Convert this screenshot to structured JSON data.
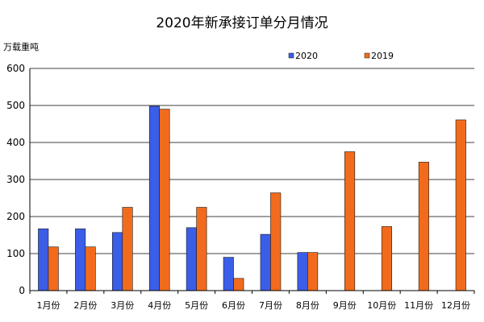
{
  "chart_data": {
    "type": "bar",
    "title": "2020年新承接订单分月情况",
    "ylabel": "万载重吨",
    "xlabel": "",
    "ylim": [
      0,
      600
    ],
    "yticks": [
      0,
      100,
      200,
      300,
      400,
      500,
      600
    ],
    "grid": "horizontal",
    "legend_position": "top-right",
    "categories": [
      "1月份",
      "2月份",
      "3月份",
      "4月份",
      "5月份",
      "6月份",
      "7月份",
      "8月份",
      "9月份",
      "10月份",
      "11月份",
      "12月份"
    ],
    "series": [
      {
        "name": "2020",
        "color": "#3b5ee8",
        "values": [
          167,
          167,
          157,
          498,
          170,
          90,
          152,
          103,
          null,
          null,
          null,
          null
        ]
      },
      {
        "name": "2019",
        "color": "#f26b1d",
        "values": [
          118,
          118,
          225,
          490,
          225,
          33,
          264,
          103,
          375,
          173,
          347,
          461
        ]
      }
    ]
  }
}
